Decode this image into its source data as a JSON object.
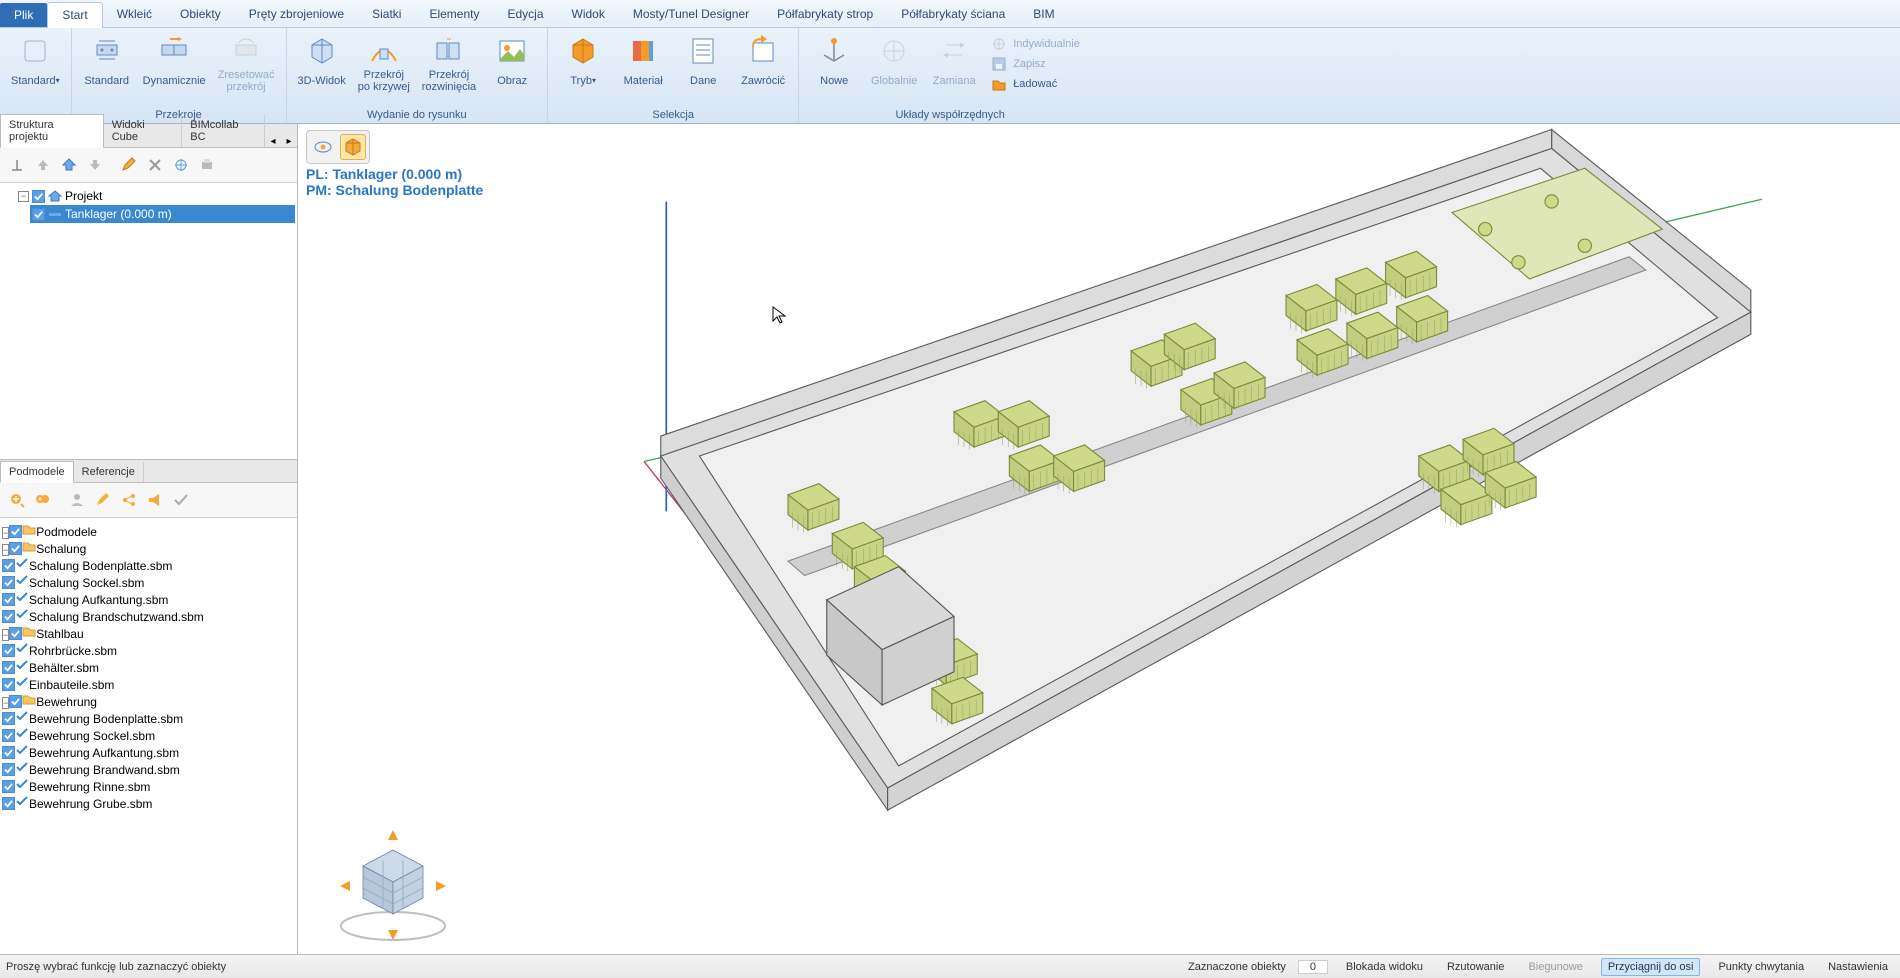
{
  "colors": {
    "ribbon_bg_top": "#eaf2fb",
    "ribbon_bg_bottom": "#d7e5f4",
    "accent": "#2f6db5",
    "text": "#355b8f",
    "select_bg": "#3a87d2",
    "orange": "#f59b2a",
    "folder": "#f7c45f",
    "chk_bg": "#5a9fe6",
    "viewport_pl": "#2a76c4"
  },
  "ribbon": {
    "file_tab": "Plik",
    "tabs": [
      "Start",
      "Wkleić",
      "Obiekty",
      "Pręty zbrojeniowe",
      "Siatki",
      "Elementy",
      "Edycja",
      "Widok",
      "Mosty/Tunel Designer",
      "Półfabrykaty strop",
      "Półfabrykaty ściana",
      "BIM"
    ],
    "active_tab": "Start",
    "standard_btn": "Standard",
    "groups": {
      "przekroje": {
        "label": "Przekroje",
        "items": [
          {
            "key": "standard",
            "label": "Standard",
            "icon": "section-std"
          },
          {
            "key": "dynamicznie",
            "label": "Dynamicznie",
            "icon": "section-dyn"
          },
          {
            "key": "zresetowac",
            "label": "Zresetować przekrój",
            "icon": "section-reset",
            "disabled": true
          }
        ]
      },
      "wydanie": {
        "label": "Wydanie do rysunku",
        "items": [
          {
            "key": "widok3d",
            "label": "3D-Widok",
            "icon": "cube-3d"
          },
          {
            "key": "krzywa",
            "label": "Przekrój po krzywej",
            "icon": "curve-section"
          },
          {
            "key": "rozw",
            "label": "Przekrój rozwinięcia",
            "icon": "unfold-section"
          },
          {
            "key": "obraz",
            "label": "Obraz",
            "icon": "picture"
          }
        ]
      },
      "selekcja": {
        "label": "Selekcja",
        "items": [
          {
            "key": "tryb",
            "label": "Tryb",
            "icon": "mode",
            "dropdown": true
          },
          {
            "key": "material",
            "label": "Materiał",
            "icon": "material"
          },
          {
            "key": "dane",
            "label": "Dane",
            "icon": "data"
          },
          {
            "key": "zawrocic",
            "label": "Zawrócić",
            "icon": "revert"
          }
        ]
      },
      "uklady": {
        "label": "Układy współrzędnych",
        "items": [
          {
            "key": "nowe",
            "label": "Nowe",
            "icon": "ucs-new"
          },
          {
            "key": "globalnie",
            "label": "Globalnie",
            "icon": "ucs-glob",
            "disabled": true
          },
          {
            "key": "zamiana",
            "label": "Zamiana",
            "icon": "ucs-swap",
            "disabled": true
          }
        ],
        "small": [
          {
            "key": "indyw",
            "label": "Indywidualnie",
            "icon": "ucs-ind",
            "disabled": true
          },
          {
            "key": "zapisz",
            "label": "Zapisz",
            "icon": "save",
            "disabled": true
          },
          {
            "key": "ladowac",
            "label": "Ładować",
            "icon": "load"
          }
        ]
      }
    }
  },
  "left_panel": {
    "tabs_upper": [
      "Struktura projektu",
      "Widoki Cube",
      "BIMcollab BC"
    ],
    "active_upper": "Struktura projektu",
    "project_tree": {
      "root": "Projekt",
      "item": "Tanklager (0.000 m)"
    },
    "tabs_lower": [
      "Podmodele",
      "Referencje"
    ],
    "active_lower": "Podmodele",
    "model_tree": {
      "root": "Podmodele",
      "groups": [
        {
          "name": "Schalung",
          "items": [
            "Schalung Bodenplatte.sbm",
            "Schalung Sockel.sbm",
            "Schalung Aufkantung.sbm",
            "Schalung Brandschutzwand.sbm"
          ],
          "selected_index": 0
        },
        {
          "name": "Stahlbau",
          "items": [
            "Rohrbrücke.sbm",
            "Behälter.sbm",
            "Einbauteile.sbm"
          ]
        },
        {
          "name": "Bewehrung",
          "items": [
            "Bewehrung Bodenplatte.sbm",
            "Bewehrung Sockel.sbm",
            "Bewehrung Aufkantung.sbm",
            "Bewehrung Brandwand.sbm",
            "Bewehrung Rinne.sbm",
            "Bewehrung Grube.sbm"
          ]
        }
      ]
    }
  },
  "viewport": {
    "pl": "PL: Tanklager (0.000 m)",
    "pm": "PM: Schalung Bodenplatte",
    "model_color": "#d8d8d8",
    "tank_color": "#cfd98a",
    "axis_x": "#c23b6b",
    "axis_y": "#3aa64a",
    "axis_z": "#2a5bbf"
  },
  "statusbar": {
    "hint": "Proszę wybrać funkcję lub zaznaczyć obiekty",
    "selected_label": "Zaznaczone obiekty",
    "selected_count": "0",
    "items": [
      {
        "label": "Blokada widoku",
        "active": false
      },
      {
        "label": "Rzutowanie",
        "active": false
      },
      {
        "label": "Biegunowe",
        "active": false,
        "disabled": true
      },
      {
        "label": "Przyciągnij do osi",
        "active": true
      },
      {
        "label": "Punkty chwytania",
        "active": false
      },
      {
        "label": "Nastawienia",
        "active": false
      }
    ]
  }
}
